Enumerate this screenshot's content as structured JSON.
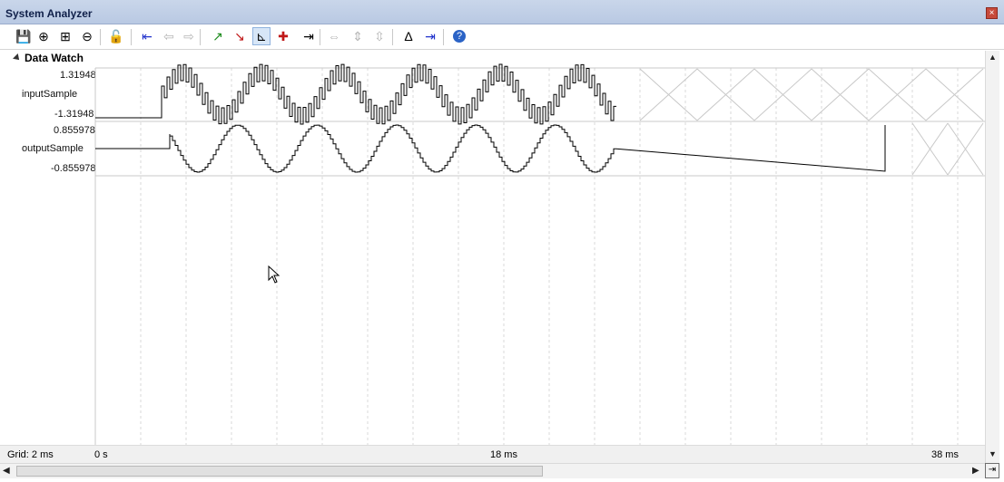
{
  "window": {
    "title": "System Analyzer",
    "close_glyph": "×"
  },
  "toolbar": {
    "buttons": [
      {
        "name": "save-icon",
        "glyph": "💾",
        "state": "normal"
      },
      {
        "name": "zoom-in-icon",
        "glyph": "⊕",
        "state": "normal"
      },
      {
        "name": "zoom-all-icon",
        "glyph": "⊞",
        "state": "normal"
      },
      {
        "name": "zoom-out-icon",
        "glyph": "⊖",
        "state": "normal"
      },
      {
        "name": "lock-icon",
        "glyph": "🔓",
        "state": "normal"
      },
      {
        "name": "jump-to-trigger-icon",
        "glyph": "⇤",
        "state": "normal"
      },
      {
        "name": "previous-icon",
        "glyph": "⇦",
        "state": "disabled"
      },
      {
        "name": "next-icon",
        "glyph": "⇨",
        "state": "disabled"
      },
      {
        "name": "rising-edge-icon",
        "glyph": "↗",
        "state": "normal"
      },
      {
        "name": "falling-edge-icon",
        "glyph": "↘",
        "state": "normal"
      },
      {
        "name": "show-cycles-icon",
        "glyph": "⊾",
        "state": "active"
      },
      {
        "name": "mark-icon",
        "glyph": "✚",
        "state": "normal"
      },
      {
        "name": "go-to-icon",
        "glyph": "⇥",
        "state": "normal"
      },
      {
        "name": "expand-icon",
        "glyph": "⇔",
        "state": "disabled"
      },
      {
        "name": "collapse-icon",
        "glyph": "⇕",
        "state": "disabled"
      },
      {
        "name": "sort-icon",
        "glyph": "⇳",
        "state": "disabled"
      },
      {
        "name": "delta-icon",
        "glyph": "Δ",
        "state": "normal"
      },
      {
        "name": "jump-end-icon",
        "glyph": "⇥",
        "state": "normal"
      },
      {
        "name": "help-icon",
        "glyph": "?",
        "state": "normal"
      }
    ]
  },
  "section": {
    "title": "Data Watch"
  },
  "signals": [
    {
      "name": "inputSample",
      "max": "1.31948",
      "min": "-1.31948"
    },
    {
      "name": "outputSample",
      "max": "0.855978",
      "min": "-0.855978"
    }
  ],
  "status": {
    "grid": "Grid: 2 ms",
    "t_start": "0 s",
    "t_mid": "18 ms",
    "t_end": "38 ms"
  },
  "colors": {
    "accent": "#c9d6ea",
    "grid": "#d9d9d9",
    "trace": "#000000",
    "invalid": "#c8c8c8"
  }
}
